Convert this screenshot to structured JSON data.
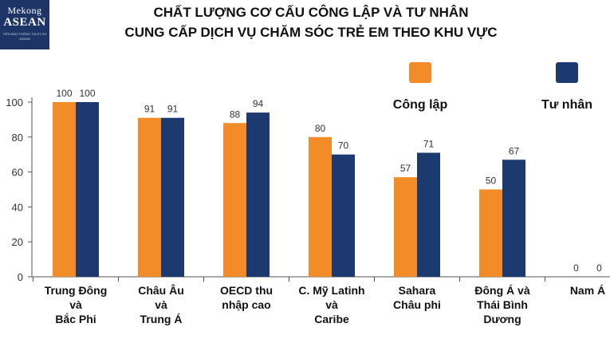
{
  "logo": {
    "line1": "Mekong",
    "line2": "ASEAN",
    "line3": "TIÊN ĐÀO THÔNG TIN KT-XH ASEAN"
  },
  "title_line1": "CHẤT LƯỢNG CƠ CẤU CÔNG LẬP VÀ TƯ NHÂN",
  "title_line2": "CUNG CẤP DỊCH VỤ CHĂM SÓC TRẺ EM THEO KHU VỰC",
  "chart_data": {
    "type": "bar",
    "categories": [
      [
        "Trung Đông",
        "và",
        "Bắc Phi"
      ],
      [
        "Châu Âu",
        "và",
        "Trung Á"
      ],
      [
        "OECD thu",
        "nhập cao"
      ],
      [
        "C. Mỹ Latinh",
        "và",
        "Caribe"
      ],
      [
        "Sahara",
        "Châu phi"
      ],
      [
        "Đông Á và",
        "Thái Bình",
        "Dương"
      ],
      [
        "Nam Á"
      ]
    ],
    "series": [
      {
        "name": "Công lập",
        "color": "#f28c28",
        "values": [
          100,
          91,
          88,
          80,
          57,
          50,
          0
        ]
      },
      {
        "name": "Tư nhân",
        "color": "#1c3a70",
        "values": [
          100,
          91,
          94,
          70,
          71,
          67,
          0
        ]
      }
    ],
    "yticks": [
      "0",
      "20",
      "40",
      "60",
      "80",
      "100"
    ],
    "ylim": [
      0,
      100
    ],
    "legend_position": "top-right",
    "grid": false
  }
}
